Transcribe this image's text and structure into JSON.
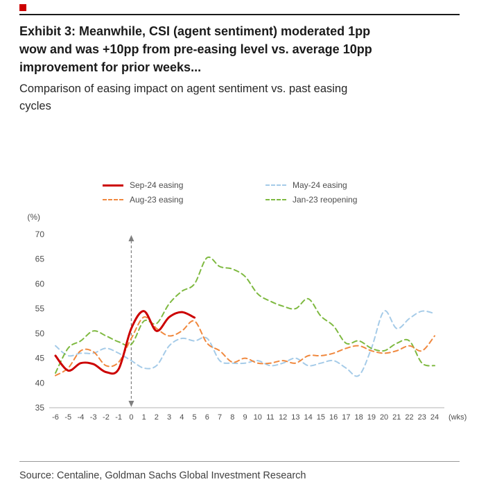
{
  "page": {
    "marker_color": "#cc0000"
  },
  "header": {
    "title_lines": [
      "Exhibit 3: Meanwhile, CSI (agent sentiment) moderated 1pp",
      "wow and was +10pp from pre-easing level vs. average 10pp",
      "improvement for prior weeks..."
    ],
    "subtitle_lines": [
      "Comparison of easing impact on agent sentiment vs. past easing",
      "cycles"
    ]
  },
  "chart_data": {
    "type": "line",
    "title": "Exhibit 3: Meanwhile, CSI (agent sentiment) moderated 1pp wow and was +10pp from pre-easing level vs. average 10pp improvement for prior weeks...",
    "subtitle": "Comparison of easing impact on agent sentiment vs. past easing cycles",
    "ylabel": "(%)",
    "xlabel_suffix": "(wks)",
    "ylim": [
      35,
      70
    ],
    "yticks": [
      70,
      65,
      60,
      55,
      50,
      45,
      40,
      35
    ],
    "x": [
      -6,
      -5,
      -4,
      -3,
      -2,
      -1,
      0,
      1,
      2,
      3,
      4,
      5,
      6,
      7,
      8,
      9,
      10,
      11,
      12,
      13,
      14,
      15,
      16,
      17,
      18,
      19,
      20,
      21,
      22,
      23,
      24
    ],
    "grid": false,
    "legend_position": "top",
    "event_marker": {
      "x": 0,
      "style": "dashed-double-arrow",
      "color": "#7f7f7f"
    },
    "series": [
      {
        "name": "May-24 easing",
        "color": "#a5cbe8",
        "dash": "dashed",
        "width": 2,
        "values": [
          47.5,
          45.5,
          46,
          46,
          47,
          46,
          44.5,
          43,
          43.5,
          47.5,
          49,
          48.5,
          49,
          44.5,
          44,
          44,
          44.5,
          43.5,
          44,
          45,
          43.5,
          44,
          44.5,
          43,
          41.5,
          47,
          54.5,
          51,
          53,
          54.5,
          54
        ]
      },
      {
        "name": "Jan-23 reopening",
        "color": "#7eb940",
        "dash": "dashed",
        "width": 2,
        "values": [
          42,
          47,
          48.5,
          50.5,
          49.5,
          48.3,
          47.8,
          52.5,
          52,
          56,
          58.5,
          60,
          65.3,
          63.5,
          63,
          61.5,
          58,
          56.5,
          55.5,
          55,
          57,
          53.5,
          51.5,
          48,
          48.5,
          47,
          46.5,
          48,
          48.5,
          44,
          43.5
        ]
      },
      {
        "name": "Aug-23 easing",
        "color": "#f0883e",
        "dash": "dashed",
        "width": 2,
        "values": [
          41.5,
          43,
          46.5,
          46.3,
          43.5,
          44.2,
          49,
          53.3,
          51,
          49.5,
          50.5,
          52.5,
          48,
          46.5,
          44.2,
          45,
          44,
          44,
          44.5,
          44,
          45.5,
          45.5,
          46,
          47,
          47.5,
          46.5,
          46,
          46.5,
          47.5,
          46.5,
          49.5
        ]
      },
      {
        "name": "Sep-24 easing",
        "color": "#cc0000",
        "dash": "solid",
        "width": 3,
        "values": [
          45.5,
          42.5,
          44,
          43.8,
          42.2,
          42.8,
          51,
          54.5,
          50.5,
          53.3,
          54.3,
          53.2,
          null,
          null,
          null,
          null,
          null,
          null,
          null,
          null,
          null,
          null,
          null,
          null,
          null,
          null,
          null,
          null,
          null,
          null,
          null
        ]
      }
    ]
  },
  "footer": {
    "source": "Source: Centaline, Goldman Sachs Global Investment Research"
  }
}
